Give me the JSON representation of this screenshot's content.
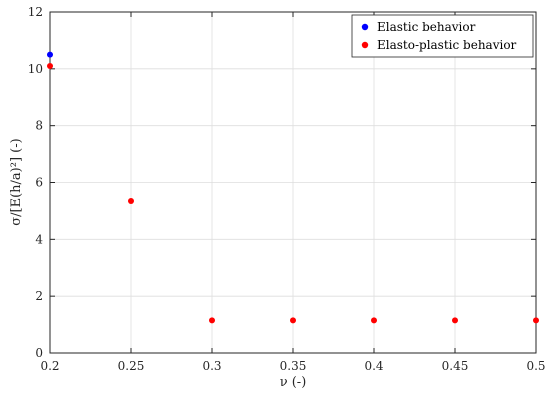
{
  "chart_data": {
    "type": "scatter",
    "xlabel": "ν (-)",
    "ylabel": "σ/[E(h/a)²] (-)",
    "xlim": [
      0.2,
      0.5
    ],
    "ylim": [
      0,
      12
    ],
    "x_ticks": [
      "0.2",
      "0.25",
      "0.3",
      "0.35",
      "0.4",
      "0.45",
      "0.5"
    ],
    "y_ticks": [
      "0",
      "2",
      "4",
      "6",
      "8",
      "10",
      "12"
    ],
    "grid": true,
    "legend_position": "top-right",
    "series": [
      {
        "name": "Elastic behavior",
        "color": "#0000ff",
        "points": [
          [
            0.2,
            10.5
          ]
        ]
      },
      {
        "name": "Elasto-plastic behavior",
        "color": "#ff0000",
        "points": [
          [
            0.2,
            10.1
          ],
          [
            0.25,
            5.35
          ],
          [
            0.3,
            1.15
          ],
          [
            0.35,
            1.15
          ],
          [
            0.4,
            1.15
          ],
          [
            0.45,
            1.15
          ],
          [
            0.5,
            1.15
          ]
        ]
      }
    ]
  }
}
